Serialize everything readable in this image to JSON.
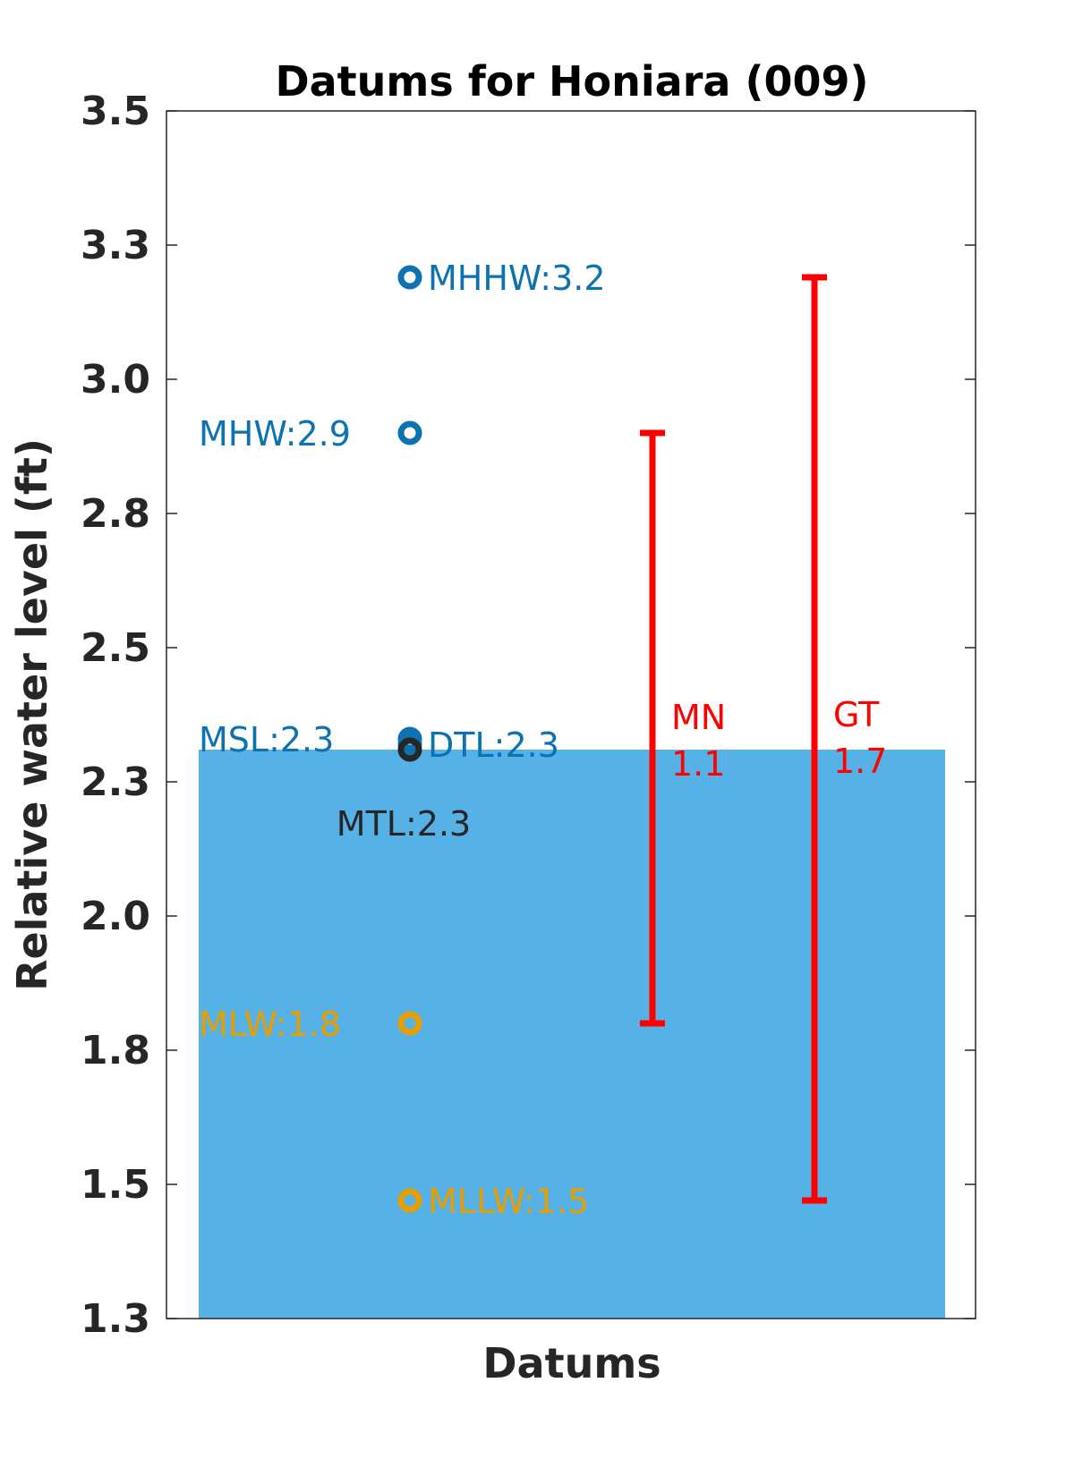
{
  "chart_data": {
    "type": "scatter",
    "title": "Datums for Honiara (009)",
    "xlabel": "Datums",
    "ylabel": "Relative water level (ft)",
    "ylim": [
      1.25,
      3.5
    ],
    "yticks": [
      1.25,
      1.5,
      1.75,
      2.0,
      2.25,
      2.5,
      2.75,
      3.0,
      3.25,
      3.5
    ],
    "ytick_labels": [
      "1.3",
      "1.5",
      "1.8",
      "2.0",
      "2.3",
      "2.5",
      "2.8",
      "3.0",
      "3.3",
      "3.5"
    ],
    "background_bar": {
      "top_value": 2.31,
      "color": "#56B1E6"
    },
    "datums": [
      {
        "name": "MHHW",
        "value": 3.19,
        "label": "MHHW:3.2",
        "label_side": "right",
        "color": "#0C72B0"
      },
      {
        "name": "MHW",
        "value": 2.9,
        "label": "MHW:2.9",
        "label_side": "left",
        "color": "#0C72B0"
      },
      {
        "name": "MSL",
        "value": 2.33,
        "label": "MSL:2.3",
        "label_side": "left",
        "color": "#0C72B0"
      },
      {
        "name": "DTL",
        "value": 2.32,
        "label": "DTL:2.3",
        "label_side": "right",
        "color": "#0C72B0"
      },
      {
        "name": "MTL",
        "value": 2.31,
        "label": "MTL:2.3",
        "label_side": "below",
        "color": "#262626"
      },
      {
        "name": "MLW",
        "value": 1.8,
        "label": "MLW:1.8",
        "label_side": "left",
        "color": "#E69F00"
      },
      {
        "name": "MLLW",
        "value": 1.47,
        "label": "MLLW:1.5",
        "label_side": "right",
        "color": "#E69F00"
      }
    ],
    "ranges": [
      {
        "name": "MN",
        "label": "MN",
        "value_label": "1.1",
        "low": 1.8,
        "high": 2.9,
        "color": "#FF0000"
      },
      {
        "name": "GT",
        "label": "GT",
        "value_label": "1.7",
        "low": 1.47,
        "high": 3.19,
        "color": "#FF0000"
      }
    ]
  }
}
